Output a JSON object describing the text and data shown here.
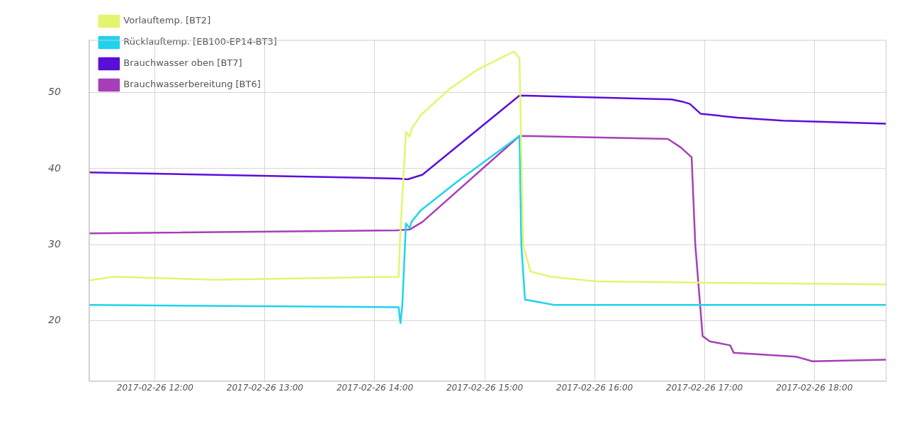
{
  "chart_data": {
    "type": "line",
    "xlim": [
      "2017-02-26T11:24",
      "2017-02-26T18:39"
    ],
    "xticks": [
      {
        "value": "2017-02-26T12:00",
        "label": "2017-02-26 12:00"
      },
      {
        "value": "2017-02-26T13:00",
        "label": "2017-02-26 13:00"
      },
      {
        "value": "2017-02-26T14:00",
        "label": "2017-02-26 14:00"
      },
      {
        "value": "2017-02-26T15:00",
        "label": "2017-02-26 15:00"
      },
      {
        "value": "2017-02-26T16:00",
        "label": "2017-02-26 16:00"
      },
      {
        "value": "2017-02-26T17:00",
        "label": "2017-02-26 17:00"
      },
      {
        "value": "2017-02-26T18:00",
        "label": "2017-02-26 18:00"
      }
    ],
    "ylim": [
      12.1,
      56.9
    ],
    "yticks": [
      20,
      30,
      40,
      50
    ],
    "grid": true,
    "legend": "top left",
    "marker": "none",
    "line_style": "solid",
    "series": [
      {
        "name": "Vorlauftemp. [BT2]",
        "color": "#e3f56e",
        "x": [
          "2017-02-26T11:24",
          "2017-02-26T11:37",
          "2017-02-26T12:33",
          "2017-02-26T14:13",
          "2017-02-26T14:14",
          "2017-02-26T14:17",
          "2017-02-26T14:19",
          "2017-02-26T14:20",
          "2017-02-26T14:25",
          "2017-02-26T14:41",
          "2017-02-26T14:56",
          "2017-02-26T15:11",
          "2017-02-26T15:16",
          "2017-02-26T15:19",
          "2017-02-26T15:21",
          "2017-02-26T15:25",
          "2017-02-26T15:36",
          "2017-02-26T16:01",
          "2017-02-26T17:05",
          "2017-02-26T18:39"
        ],
        "values": [
          25.3,
          25.8,
          25.4,
          25.8,
          32,
          44.8,
          44.2,
          45.2,
          47,
          50.5,
          53,
          54.8,
          55.4,
          54.5,
          30,
          26.5,
          25.8,
          25.2,
          25.0,
          24.8
        ]
      },
      {
        "name": "Rücklauftemp. [EB100-EP14-BT3]",
        "color": "#1fd3ee",
        "x": [
          "2017-02-26T11:24",
          "2017-02-26T14:13",
          "2017-02-26T14:14",
          "2017-02-26T14:15",
          "2017-02-26T14:17",
          "2017-02-26T14:19",
          "2017-02-26T14:20",
          "2017-02-26T14:25",
          "2017-02-26T14:45",
          "2017-02-26T15:19",
          "2017-02-26T15:20",
          "2017-02-26T15:22",
          "2017-02-26T15:38",
          "2017-02-26T18:39"
        ],
        "values": [
          22.1,
          21.8,
          19.7,
          22,
          32.8,
          32.2,
          33,
          34.5,
          38.3,
          44.3,
          30,
          22.8,
          22.1,
          22.1
        ]
      },
      {
        "name": "Brauchwasser oben [BT7]",
        "color": "#5a0fd8",
        "x": [
          "2017-02-26T11:24",
          "2017-02-26T14:13",
          "2017-02-26T14:18",
          "2017-02-26T14:26",
          "2017-02-26T15:19",
          "2017-02-26T16:42",
          "2017-02-26T16:48",
          "2017-02-26T16:52",
          "2017-02-26T16:58",
          "2017-02-26T17:18",
          "2017-02-26T17:43",
          "2017-02-26T18:39"
        ],
        "values": [
          39.5,
          38.7,
          38.6,
          39.2,
          49.6,
          49.1,
          48.8,
          48.5,
          47.2,
          46.7,
          46.3,
          45.9
        ]
      },
      {
        "name": "Brauchwasserbereitung [BT6]",
        "color": "#a63fb8",
        "x": [
          "2017-02-26T11:24",
          "2017-02-26T14:12",
          "2017-02-26T14:19",
          "2017-02-26T14:26",
          "2017-02-26T15:19",
          "2017-02-26T16:40",
          "2017-02-26T16:47",
          "2017-02-26T16:53",
          "2017-02-26T16:55",
          "2017-02-26T16:59",
          "2017-02-26T17:03",
          "2017-02-26T17:14",
          "2017-02-26T17:15",
          "2017-02-26T17:16",
          "2017-02-26T17:50",
          "2017-02-26T17:59",
          "2017-02-26T18:39"
        ],
        "values": [
          31.5,
          31.9,
          32,
          33,
          44.3,
          43.9,
          42.8,
          41.5,
          30,
          18,
          17.3,
          16.8,
          16.3,
          15.8,
          15.3,
          14.7,
          14.9
        ]
      }
    ]
  }
}
